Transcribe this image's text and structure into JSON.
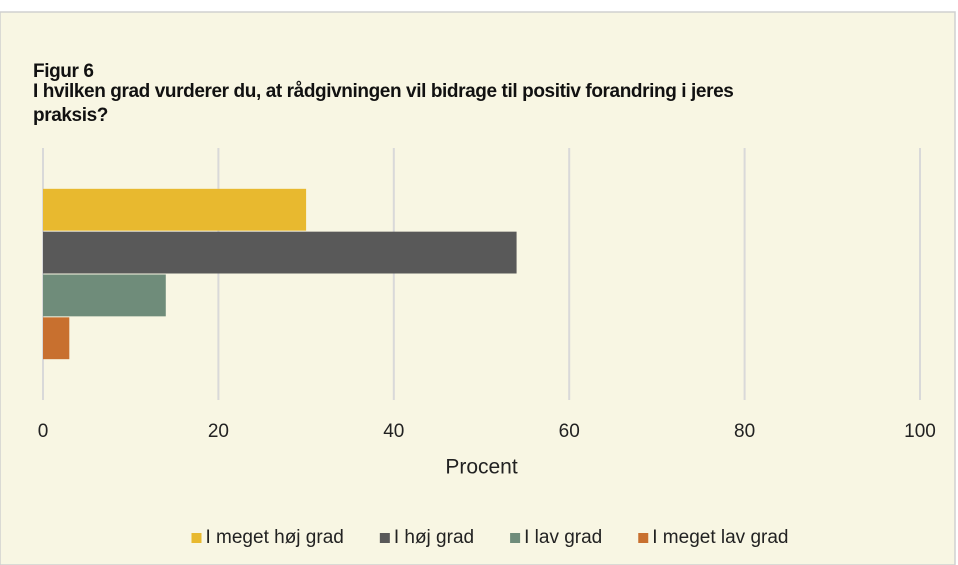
{
  "chart_data": {
    "type": "bar",
    "orientation": "horizontal",
    "title": "Figur 6",
    "subtitle": "I hvilken grad vurderer du, at rådgivningen vil bidrage til positiv forandring i jeres praksis?",
    "categories": [
      null
    ],
    "series": [
      {
        "name": "I meget høj grad",
        "color": "#e8b92f",
        "values": [
          30
        ]
      },
      {
        "name": "I høj grad",
        "color": "#595959",
        "values": [
          54
        ]
      },
      {
        "name": "I lav grad",
        "color": "#6f8c7a",
        "values": [
          14
        ]
      },
      {
        "name": "I meget lav grad",
        "color": "#c8702f",
        "values": [
          3
        ]
      }
    ],
    "xlabel": "Procent",
    "xlim": [
      0,
      100
    ],
    "xticks": [
      0,
      20,
      40,
      60,
      80,
      100
    ],
    "grid": true,
    "legend": "bottom",
    "background": "#f8f6e3"
  }
}
